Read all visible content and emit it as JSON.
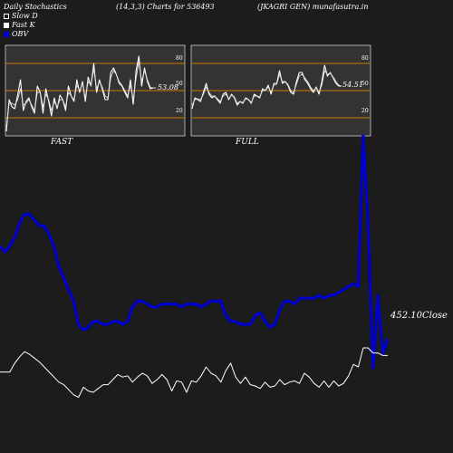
{
  "header": {
    "title": "Daily Stochastics",
    "params": "(14,3,3) Charts for 536493",
    "symbol": "(JKAGRI GEN) munafasutra.in"
  },
  "legend": [
    {
      "label": "Slow  D",
      "color": "#ffffff",
      "style": "outline"
    },
    {
      "label": "Fast K",
      "color": "#ffffff",
      "style": "fill"
    },
    {
      "label": "OBV",
      "color": "#0000cc",
      "style": "fill"
    }
  ],
  "panels": {
    "fast": {
      "label": "FAST",
      "last_value": "53.08",
      "level_labels": [
        "80",
        "50",
        "20"
      ]
    },
    "full": {
      "label": "FULL",
      "last_value": "54.51",
      "level_labels": [
        "80",
        "50",
        "20"
      ]
    }
  },
  "price_label": "452.10Close",
  "colors": {
    "background": "#1c1c1c",
    "panel_bg": "#333333",
    "level_line": "#cc7a00",
    "obv": "#0000cc",
    "line": "#ffffff"
  },
  "chart_data": [
    {
      "type": "line",
      "name": "fast-stochastics",
      "ylim": [
        0,
        100
      ],
      "levels": [
        80,
        50,
        20
      ],
      "series": [
        {
          "name": "Fast K",
          "values": [
            5,
            40,
            32,
            30,
            45,
            62,
            28,
            38,
            42,
            32,
            25,
            55,
            48,
            25,
            52,
            38,
            22,
            42,
            30,
            45,
            40,
            28,
            55,
            44,
            38,
            62,
            48,
            60,
            38,
            65,
            55,
            80,
            48,
            62,
            52,
            40,
            40,
            70,
            75,
            68,
            58,
            55,
            48,
            42,
            62,
            35,
            72,
            88,
            55,
            75,
            60,
            52,
            53,
            53
          ]
        },
        {
          "name": "Slow  D",
          "values": [
            10,
            36,
            36,
            34,
            40,
            52,
            34,
            36,
            40,
            34,
            28,
            48,
            48,
            32,
            46,
            40,
            28,
            38,
            32,
            40,
            40,
            32,
            48,
            44,
            40,
            56,
            50,
            58,
            42,
            60,
            56,
            74,
            52,
            60,
            54,
            44,
            42,
            64,
            72,
            68,
            60,
            56,
            50,
            44,
            56,
            40,
            64,
            82,
            60,
            72,
            62,
            54,
            53,
            53
          ]
        }
      ]
    },
    {
      "type": "line",
      "name": "full-stochastics",
      "ylim": [
        0,
        100
      ],
      "levels": [
        80,
        50,
        20
      ],
      "series": [
        {
          "name": "Fast K",
          "values": [
            30,
            42,
            40,
            38,
            48,
            58,
            46,
            42,
            44,
            40,
            36,
            46,
            48,
            40,
            46,
            42,
            34,
            38,
            36,
            42,
            40,
            36,
            46,
            44,
            42,
            52,
            50,
            56,
            46,
            58,
            58,
            72,
            58,
            60,
            56,
            48,
            46,
            60,
            70,
            70,
            62,
            58,
            52,
            48,
            54,
            46,
            60,
            78,
            66,
            70,
            64,
            58,
            55,
            55
          ]
        },
        {
          "name": "Slow  D",
          "values": [
            34,
            40,
            41,
            40,
            46,
            54,
            48,
            44,
            44,
            41,
            38,
            44,
            46,
            41,
            45,
            43,
            36,
            38,
            37,
            41,
            40,
            37,
            44,
            44,
            43,
            50,
            50,
            54,
            48,
            56,
            57,
            68,
            60,
            60,
            57,
            50,
            48,
            57,
            66,
            68,
            64,
            60,
            54,
            50,
            53,
            48,
            56,
            72,
            68,
            69,
            65,
            60,
            56,
            55
          ]
        }
      ]
    },
    {
      "type": "line",
      "name": "obv-and-price",
      "series": [
        {
          "name": "OBV",
          "values": [
            0.62,
            0.6,
            0.62,
            0.65,
            0.7,
            0.73,
            0.73,
            0.71,
            0.69,
            0.69,
            0.66,
            0.62,
            0.55,
            0.51,
            0.47,
            0.43,
            0.35,
            0.33,
            0.34,
            0.36,
            0.36,
            0.35,
            0.35,
            0.36,
            0.36,
            0.35,
            0.36,
            0.41,
            0.43,
            0.43,
            0.42,
            0.41,
            0.41,
            0.42,
            0.42,
            0.42,
            0.42,
            0.41,
            0.42,
            0.42,
            0.42,
            0.41,
            0.42,
            0.43,
            0.43,
            0.43,
            0.38,
            0.36,
            0.36,
            0.35,
            0.35,
            0.35,
            0.38,
            0.39,
            0.36,
            0.34,
            0.35,
            0.4,
            0.43,
            0.43,
            0.42,
            0.44,
            0.44,
            0.44,
            0.44,
            0.45,
            0.44,
            0.45,
            0.45,
            0.46,
            0.47,
            0.48,
            0.49,
            0.48,
            1.0,
            0.7,
            0.2,
            0.45,
            0.25,
            0.3
          ]
        },
        {
          "name": "Close",
          "values": [
            0.21,
            0.21,
            0.21,
            0.28,
            0.33,
            0.37,
            0.35,
            0.32,
            0.29,
            0.25,
            0.21,
            0.17,
            0.13,
            0.11,
            0.07,
            0.03,
            0.01,
            0.09,
            0.06,
            0.05,
            0.08,
            0.11,
            0.11,
            0.15,
            0.19,
            0.17,
            0.18,
            0.13,
            0.17,
            0.2,
            0.18,
            0.12,
            0.15,
            0.19,
            0.15,
            0.06,
            0.14,
            0.13,
            0.05,
            0.14,
            0.13,
            0.18,
            0.25,
            0.2,
            0.18,
            0.13,
            0.22,
            0.28,
            0.17,
            0.12,
            0.17,
            0.11,
            0.1,
            0.08,
            0.13,
            0.09,
            0.1,
            0.15,
            0.11,
            0.13,
            0.14,
            0.12,
            0.2,
            0.17,
            0.12,
            0.09,
            0.14,
            0.09,
            0.14,
            0.1,
            0.12,
            0.18,
            0.27,
            0.25,
            0.4,
            0.4,
            0.36,
            0.36,
            0.34,
            0.34
          ]
        }
      ]
    }
  ]
}
